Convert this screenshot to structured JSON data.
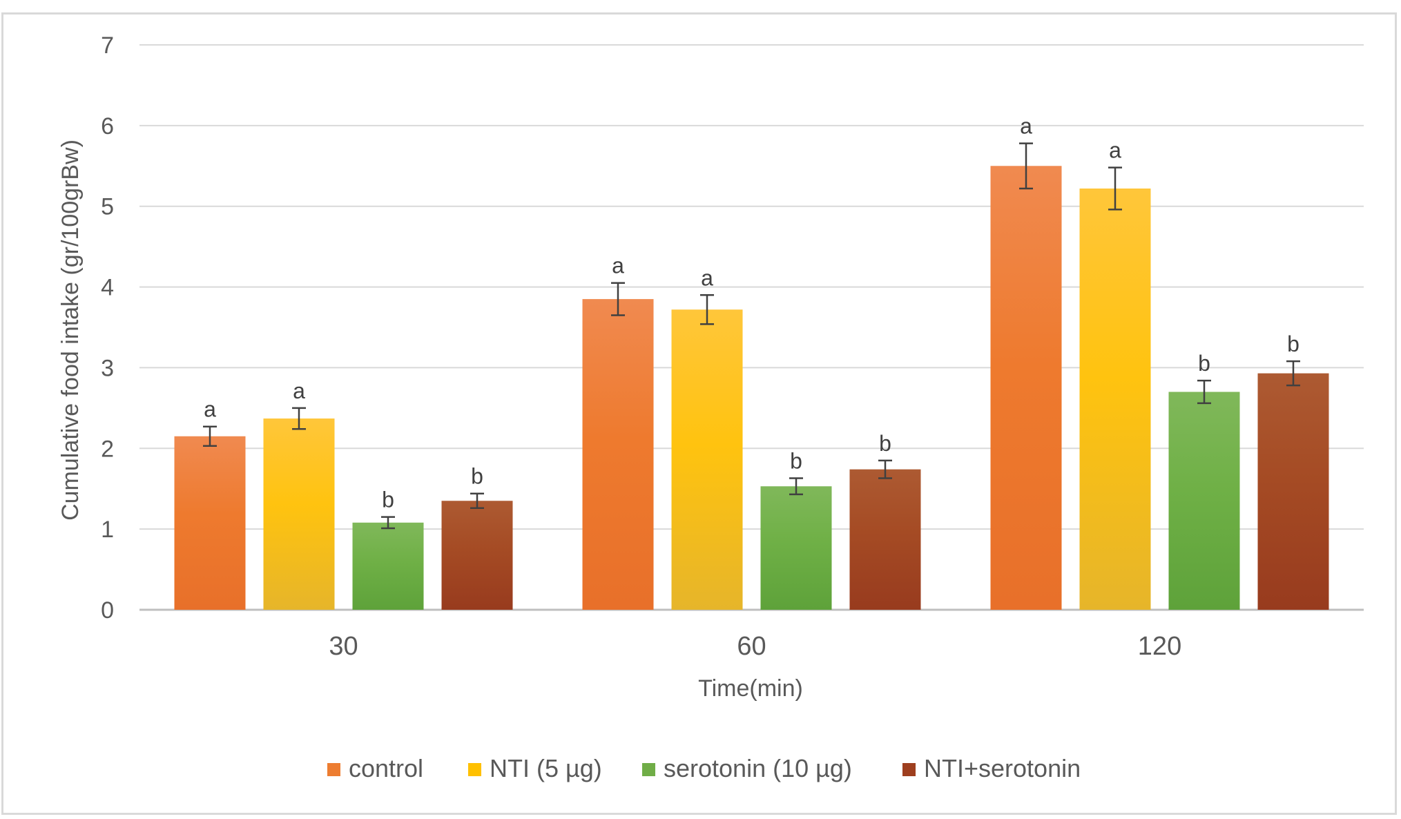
{
  "chart_data": {
    "type": "bar",
    "title": "",
    "xlabel": "Time(min)",
    "ylabel": "Cumulative food intake (gr/100grBw)",
    "categories": [
      "30",
      "60",
      "120"
    ],
    "ylim": [
      0,
      7
    ],
    "yticks": [
      "0",
      "1",
      "2",
      "3",
      "4",
      "5",
      "6",
      "7"
    ],
    "grid": true,
    "legend_position": "bottom",
    "series": [
      {
        "name": "control",
        "color": "#ed7d31",
        "values": [
          2.15,
          3.85,
          5.5
        ],
        "errors": [
          0.12,
          0.2,
          0.28
        ],
        "labels": [
          "a",
          "a",
          "a"
        ]
      },
      {
        "name": "NTI (5 µg)",
        "color": "#ffc000",
        "values": [
          2.37,
          3.72,
          5.22
        ],
        "errors": [
          0.13,
          0.18,
          0.26
        ],
        "labels": [
          "a",
          "a",
          "a"
        ]
      },
      {
        "name": "serotonin (10 µg)",
        "color": "#70ad47",
        "values": [
          1.08,
          1.53,
          2.7
        ],
        "errors": [
          0.07,
          0.1,
          0.14
        ],
        "labels": [
          "b",
          "b",
          "b"
        ]
      },
      {
        "name": "NTI+serotonin",
        "color": "#9e3f1f",
        "values": [
          1.35,
          1.74,
          2.93
        ],
        "errors": [
          0.09,
          0.11,
          0.15
        ],
        "labels": [
          "b",
          "b",
          "b"
        ]
      }
    ]
  }
}
